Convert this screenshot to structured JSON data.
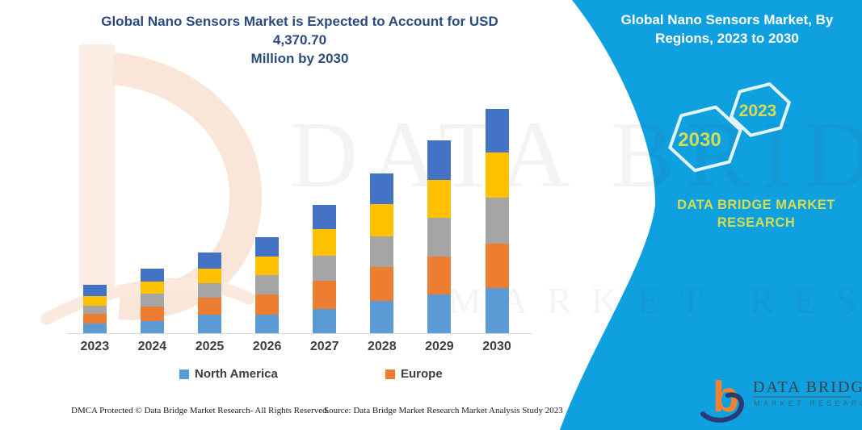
{
  "header": {
    "title_lines": [
      "Global Nano Sensors Market is Expected to Account for USD 4,370.70",
      "Million by 2030"
    ]
  },
  "panel": {
    "title_lines": [
      "Global Nano Sensors Market, By",
      "Regions, 2023 to 2030"
    ],
    "hexagons": [
      {
        "label": "2030"
      },
      {
        "label": "2023"
      }
    ],
    "brand_lines": [
      "DATA BRIDGE MARKET",
      "RESEARCH"
    ],
    "logo": {
      "name": "DATA BRIDGE",
      "tagline": "MARKET RESEARCH",
      "glyph": "b"
    },
    "colors": {
      "background": "#0FA0E0",
      "accent_text": "#D5DB52",
      "hex_stroke": "#E3F4FB"
    }
  },
  "watermarks": {
    "primary": "DATA BRIDGE",
    "secondary": "MARKET RESEARCH"
  },
  "chart_data": {
    "type": "bar",
    "stacked": true,
    "title": "Global Nano Sensors Market is Expected to Account for USD 4,370.70 Million by 2030",
    "xlabel": "",
    "ylabel": "",
    "unit": "USD Million (estimated from bar heights; 2030 total labeled 4,370.70)",
    "categories": [
      "2023",
      "2024",
      "2025",
      "2026",
      "2027",
      "2028",
      "2029",
      "2030"
    ],
    "series": [
      {
        "name": "North America",
        "color": "#5B9BD5",
        "in_legend": true,
        "values": [
          189,
          236,
          362,
          362,
          473,
          630,
          756,
          882
        ]
      },
      {
        "name": "Europe",
        "color": "#ED7D31",
        "in_legend": true,
        "values": [
          189,
          284,
          331,
          394,
          551,
          662,
          741,
          867
        ]
      },
      {
        "name": "",
        "color": "#A5A5A5",
        "in_legend": false,
        "values": [
          158,
          252,
          284,
          378,
          488,
          599,
          756,
          898
        ]
      },
      {
        "name": "",
        "color": "#FFC000",
        "in_legend": false,
        "values": [
          189,
          236,
          284,
          362,
          520,
          630,
          741,
          882
        ]
      },
      {
        "name": "",
        "color": "#4472C4",
        "in_legend": false,
        "values": [
          221,
          252,
          315,
          378,
          473,
          599,
          756,
          842
        ]
      }
    ],
    "totals_estimated": [
      946,
      1260,
      1576,
      1874,
      2505,
      3120,
      3750,
      4371
    ],
    "legend": [
      "North America",
      "Europe"
    ],
    "legend_position": "bottom",
    "y_axis_visible": false,
    "gridlines": false
  },
  "footer": {
    "left": "DMCA Protected © Data Bridge Market Research-  All Rights Reserved.",
    "right": "Source: Data Bridge Market Research  Market Analysis Study 2023"
  }
}
